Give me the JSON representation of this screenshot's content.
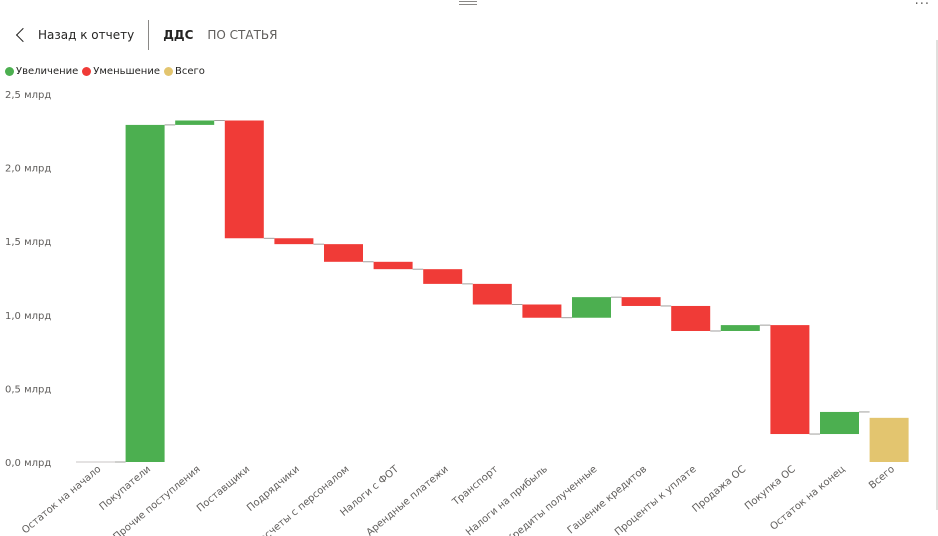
{
  "header": {
    "back_label": "Назад к отчету",
    "tabs": [
      {
        "label": "ДДС",
        "active": true
      },
      {
        "label": "ПО СТАТЬЯ",
        "active": false
      }
    ]
  },
  "icons": {
    "back": "chevron-left-icon",
    "more": "more-options-icon",
    "drag": "drag-handle-icon"
  },
  "colors": {
    "increase": "#4CAF50",
    "decrease": "#F03B37",
    "total": "#E3C56F",
    "connector": "#8a8886"
  },
  "chart_data": {
    "type": "waterfall",
    "legend": [
      {
        "label": "Увеличение",
        "color": "#4CAF50"
      },
      {
        "label": "Уменьшение",
        "color": "#F03B37"
      },
      {
        "label": "Всего",
        "color": "#E3C56F"
      }
    ],
    "legend_position": "top-left",
    "y_ticks": [
      "0,0 млрд",
      "0,5 млрд",
      "1,0 млрд",
      "1,5 млрд",
      "2,0 млрд",
      "2,5 млрд"
    ],
    "ylim": [
      0,
      2.5
    ],
    "y_unit": "млрд",
    "grid": false,
    "categories": [
      "Остаток на начало",
      "Покупатели",
      "Прочие поступления",
      "Поставщики",
      "Подрядчики",
      "Расчеты с персоналом",
      "Налоги с ФОТ",
      "Арендные платежи",
      "Транспорт",
      "Налоги на прибыль",
      "Кредиты полученные",
      "Гашение кредитов",
      "Проценты к уплате",
      "Продажа ОС",
      "Покупка ОС",
      "Остаток на конец",
      "Всего"
    ],
    "values": [
      0.0,
      2.29,
      0.03,
      -0.8,
      -0.04,
      -0.12,
      -0.05,
      -0.1,
      -0.14,
      -0.09,
      0.14,
      -0.06,
      -0.17,
      0.04,
      -0.74,
      0.15,
      0.3
    ],
    "kinds": [
      "increase",
      "increase",
      "increase",
      "decrease",
      "decrease",
      "decrease",
      "decrease",
      "decrease",
      "decrease",
      "decrease",
      "increase",
      "decrease",
      "decrease",
      "increase",
      "decrease",
      "increase",
      "total"
    ]
  }
}
